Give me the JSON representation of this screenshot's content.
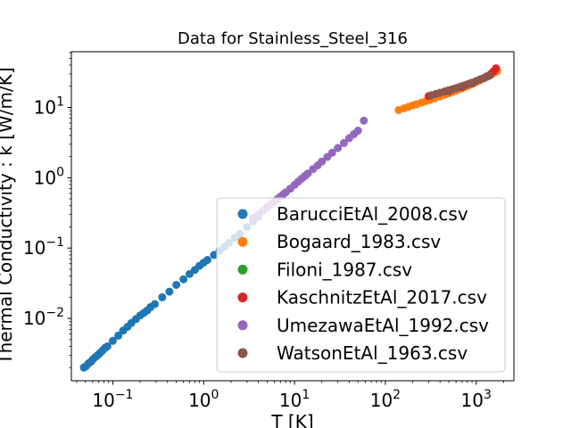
{
  "chart_data": {
    "type": "scatter",
    "title": "Data for Stainless_Steel_316",
    "xlabel": "T [K]",
    "ylabel": "Thermal Conductivity : k [W/m/K]",
    "xscale": "log",
    "yscale": "log",
    "xlim": [
      0.035,
      2600
    ],
    "ylim": [
      0.0013,
      62
    ],
    "xticks": [
      {
        "value": 0.1,
        "base": "10",
        "exp": "−1"
      },
      {
        "value": 1,
        "base": "10",
        "exp": "0"
      },
      {
        "value": 10,
        "base": "10",
        "exp": "1"
      },
      {
        "value": 100,
        "base": "10",
        "exp": "2"
      },
      {
        "value": 1000,
        "base": "10",
        "exp": "3"
      }
    ],
    "yticks": [
      {
        "value": 0.01,
        "base": "10",
        "exp": "−2"
      },
      {
        "value": 0.1,
        "base": "10",
        "exp": "−1"
      },
      {
        "value": 1,
        "base": "10",
        "exp": "0"
      },
      {
        "value": 10,
        "base": "10",
        "exp": "1"
      }
    ],
    "legend_position": "lower right",
    "series": [
      {
        "name": "BarucciEtAl_2008.csv",
        "color": "#1f77b4",
        "points": [
          [
            0.048,
            0.002
          ],
          [
            0.051,
            0.0021
          ],
          [
            0.054,
            0.0023
          ],
          [
            0.057,
            0.0024
          ],
          [
            0.06,
            0.0026
          ],
          [
            0.064,
            0.0028
          ],
          [
            0.068,
            0.003
          ],
          [
            0.072,
            0.0032
          ],
          [
            0.077,
            0.0035
          ],
          [
            0.082,
            0.0038
          ],
          [
            0.087,
            0.004
          ],
          [
            0.1,
            0.0048
          ],
          [
            0.115,
            0.0057
          ],
          [
            0.13,
            0.0067
          ],
          [
            0.145,
            0.0076
          ],
          [
            0.16,
            0.0086
          ],
          [
            0.18,
            0.0098
          ],
          [
            0.2,
            0.011
          ],
          [
            0.22,
            0.012
          ],
          [
            0.24,
            0.013
          ],
          [
            0.26,
            0.0145
          ],
          [
            0.29,
            0.016
          ],
          [
            0.35,
            0.02
          ],
          [
            0.42,
            0.024
          ],
          [
            0.5,
            0.03
          ],
          [
            0.6,
            0.036
          ],
          [
            0.7,
            0.043
          ],
          [
            0.8,
            0.049
          ],
          [
            0.9,
            0.056
          ],
          [
            1.0,
            0.062
          ],
          [
            1.1,
            0.068
          ],
          [
            1.3,
            0.08
          ],
          [
            1.5,
            0.092
          ],
          [
            1.7,
            0.105
          ],
          [
            1.9,
            0.118
          ],
          [
            2.2,
            0.14
          ],
          [
            2.5,
            0.16
          ],
          [
            3.0,
            0.2
          ],
          [
            3.5,
            0.24
          ],
          [
            4.0,
            0.28
          ]
        ]
      },
      {
        "name": "Bogaard_1983.csv",
        "color": "#ff7f0e",
        "points": [
          [
            140,
            9.2
          ],
          [
            160,
            9.7
          ],
          [
            180,
            10.2
          ],
          [
            200,
            10.7
          ],
          [
            220,
            11.1
          ],
          [
            250,
            11.7
          ],
          [
            280,
            12.3
          ],
          [
            310,
            12.8
          ],
          [
            350,
            13.5
          ],
          [
            400,
            14.3
          ],
          [
            450,
            15.1
          ],
          [
            500,
            15.9
          ],
          [
            550,
            16.6
          ],
          [
            600,
            17.4
          ],
          [
            650,
            18.1
          ],
          [
            700,
            18.8
          ],
          [
            750,
            19.5
          ],
          [
            800,
            20.2
          ],
          [
            850,
            20.9
          ],
          [
            900,
            21.6
          ],
          [
            950,
            22.3
          ],
          [
            1000,
            23.0
          ],
          [
            1100,
            24.4
          ],
          [
            1200,
            25.8
          ],
          [
            1300,
            27.2
          ],
          [
            1400,
            28.6
          ],
          [
            1500,
            30.0
          ],
          [
            1600,
            31.5
          ],
          [
            1700,
            33.0
          ]
        ]
      },
      {
        "name": "Filoni_1987.csv",
        "color": "#2ca02c",
        "points": []
      },
      {
        "name": "KaschnitzEtAl_2017.csv",
        "color": "#d62728",
        "points": [
          [
            300,
            14.5
          ],
          [
            500,
            17.0
          ],
          [
            700,
            19.5
          ],
          [
            900,
            22.0
          ],
          [
            1100,
            25.0
          ],
          [
            1300,
            27.5
          ],
          [
            1450,
            30.0
          ],
          [
            1550,
            32.5
          ],
          [
            1650,
            36.0
          ]
        ]
      },
      {
        "name": "UmezawaEtAl_1992.csv",
        "color": "#9467bd",
        "points": [
          [
            3.5,
            0.27
          ],
          [
            4.0,
            0.3
          ],
          [
            4.5,
            0.34
          ],
          [
            5.0,
            0.38
          ],
          [
            5.5,
            0.42
          ],
          [
            6.0,
            0.46
          ],
          [
            6.5,
            0.5
          ],
          [
            7.0,
            0.54
          ],
          [
            7.5,
            0.58
          ],
          [
            8.0,
            0.62
          ],
          [
            9.0,
            0.7
          ],
          [
            10,
            0.79
          ],
          [
            11,
            0.88
          ],
          [
            12,
            0.97
          ],
          [
            13,
            1.06
          ],
          [
            14,
            1.15
          ],
          [
            16,
            1.33
          ],
          [
            18,
            1.5
          ],
          [
            20,
            1.7
          ],
          [
            23,
            1.98
          ],
          [
            26,
            2.27
          ],
          [
            30,
            2.65
          ],
          [
            35,
            3.12
          ],
          [
            40,
            3.65
          ],
          [
            45,
            4.15
          ],
          [
            50,
            4.68
          ],
          [
            58,
            6.5
          ]
        ]
      },
      {
        "name": "WatsonEtAl_1963.csv",
        "color": "#8c564b",
        "points": [
          [
            320,
            14.9
          ],
          [
            360,
            15.6
          ],
          [
            400,
            16.2
          ],
          [
            450,
            16.9
          ],
          [
            500,
            17.6
          ],
          [
            550,
            18.2
          ],
          [
            600,
            18.8
          ],
          [
            650,
            19.5
          ],
          [
            700,
            20.1
          ],
          [
            750,
            20.7
          ],
          [
            800,
            21.3
          ],
          [
            850,
            21.9
          ],
          [
            900,
            22.5
          ],
          [
            1000,
            23.7
          ],
          [
            1100,
            24.9
          ],
          [
            1200,
            26.0
          ],
          [
            1300,
            27.1
          ],
          [
            1400,
            28.2
          ]
        ]
      }
    ]
  }
}
